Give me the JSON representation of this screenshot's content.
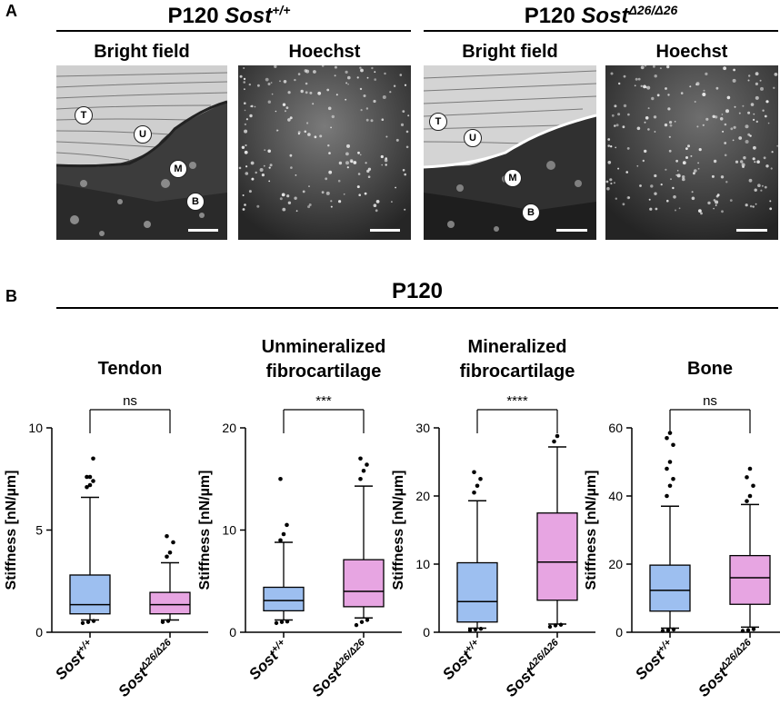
{
  "panel_a": {
    "letter": "A",
    "groups": [
      {
        "title_prefix": "P120 ",
        "gene": "Sost",
        "genotype": "+/+",
        "images": [
          {
            "title": "Bright field",
            "labels": [
              "T",
              "U",
              "M",
              "B"
            ]
          },
          {
            "title": "Hoechst"
          }
        ]
      },
      {
        "title_prefix": "P120 ",
        "gene": "Sost",
        "genotype": "Δ26/Δ26",
        "images": [
          {
            "title": "Bright field",
            "labels": [
              "T",
              "U",
              "M",
              "B"
            ]
          },
          {
            "title": "Hoechst"
          }
        ]
      }
    ]
  },
  "panel_b": {
    "letter": "B",
    "title": "P120",
    "ylabel": "Stiffness [nN/µm]",
    "xcategories": [
      {
        "gene": "Sost",
        "genotype": "+/+"
      },
      {
        "gene": "Sost",
        "genotype": "Δ26/Δ26"
      }
    ],
    "colors": {
      "wildtype": "#9dbff0",
      "mutant": "#e7a5e2"
    }
  },
  "chart_data": [
    {
      "type": "box",
      "title": "Tendon",
      "ylabel": "Stiffness [nN/µm]",
      "ylim": [
        0,
        10
      ],
      "yticks": [
        0,
        5,
        10
      ],
      "significance": "ns",
      "boxes": [
        {
          "category": "Sost+/+",
          "q1": 0.9,
          "median": 1.35,
          "q3": 2.8,
          "whisker_low": 0.6,
          "whisker_high": 6.6,
          "outliers_high": [
            7.1,
            7.2,
            7.4,
            7.6,
            7.6,
            8.5
          ],
          "outliers_low": [
            0.45,
            0.5,
            0.55
          ]
        },
        {
          "category": "SostΔ26/Δ26",
          "q1": 0.9,
          "median": 1.35,
          "q3": 1.95,
          "whisker_low": 0.6,
          "whisker_high": 3.4,
          "outliers_high": [
            3.7,
            3.9,
            4.4,
            4.7
          ],
          "outliers_low": [
            0.5,
            0.55
          ]
        }
      ]
    },
    {
      "type": "box",
      "title": "Unmineralized fibrocartilage",
      "ylabel": "Stiffness [nN/µm]",
      "ylim": [
        0,
        20
      ],
      "yticks": [
        0,
        10,
        20
      ],
      "significance": "***",
      "boxes": [
        {
          "category": "Sost+/+",
          "q1": 2.1,
          "median": 3.1,
          "q3": 4.4,
          "whisker_low": 1.2,
          "whisker_high": 8.8,
          "outliers_high": [
            9.0,
            9.6,
            10.5,
            15.0
          ],
          "outliers_low": [
            0.9,
            1.0,
            1.05
          ]
        },
        {
          "category": "SostΔ26/Δ26",
          "q1": 2.5,
          "median": 4.0,
          "q3": 7.1,
          "whisker_low": 1.4,
          "whisker_high": 14.3,
          "outliers_high": [
            15.0,
            15.8,
            16.4,
            17.0
          ],
          "outliers_low": [
            0.7,
            1.0,
            1.2
          ]
        }
      ]
    },
    {
      "type": "box",
      "title": "Mineralized fibrocartilage",
      "ylabel": "Stiffness [nN/µm]",
      "ylim": [
        0,
        30
      ],
      "yticks": [
        0,
        10,
        20,
        30
      ],
      "significance": "****",
      "boxes": [
        {
          "category": "Sost+/+",
          "q1": 1.5,
          "median": 4.5,
          "q3": 10.2,
          "whisker_low": 0.6,
          "whisker_high": 19.3,
          "outliers_high": [
            20.5,
            21.5,
            22.5,
            23.5
          ],
          "outliers_low": [
            0.3,
            0.4,
            0.5
          ]
        },
        {
          "category": "SostΔ26/Δ26",
          "q1": 4.7,
          "median": 10.3,
          "q3": 17.5,
          "whisker_low": 1.2,
          "whisker_high": 27.2,
          "outliers_high": [
            28.0,
            28.8
          ],
          "outliers_low": [
            0.8,
            1.0,
            1.1
          ]
        }
      ]
    },
    {
      "type": "box",
      "title": "Bone",
      "ylabel": "Stiffness [nN/µm]",
      "ylim": [
        0,
        60
      ],
      "yticks": [
        0,
        20,
        40,
        60
      ],
      "significance": "ns",
      "boxes": [
        {
          "category": "Sost+/+",
          "q1": 6.2,
          "median": 12.3,
          "q3": 19.7,
          "whisker_low": 1.2,
          "whisker_high": 37.0,
          "outliers_high": [
            40.0,
            43.0,
            45.0,
            48.0,
            50.0,
            55.0,
            57.0,
            58.5
          ],
          "outliers_low": [
            0.4,
            0.6,
            0.8
          ]
        },
        {
          "category": "SostΔ26/Δ26",
          "q1": 8.2,
          "median": 16.0,
          "q3": 22.5,
          "whisker_low": 1.5,
          "whisker_high": 37.5,
          "outliers_high": [
            38.5,
            40.0,
            43.0,
            45.5,
            48.0
          ],
          "outliers_low": [
            0.4,
            0.6,
            0.9
          ]
        }
      ]
    }
  ]
}
